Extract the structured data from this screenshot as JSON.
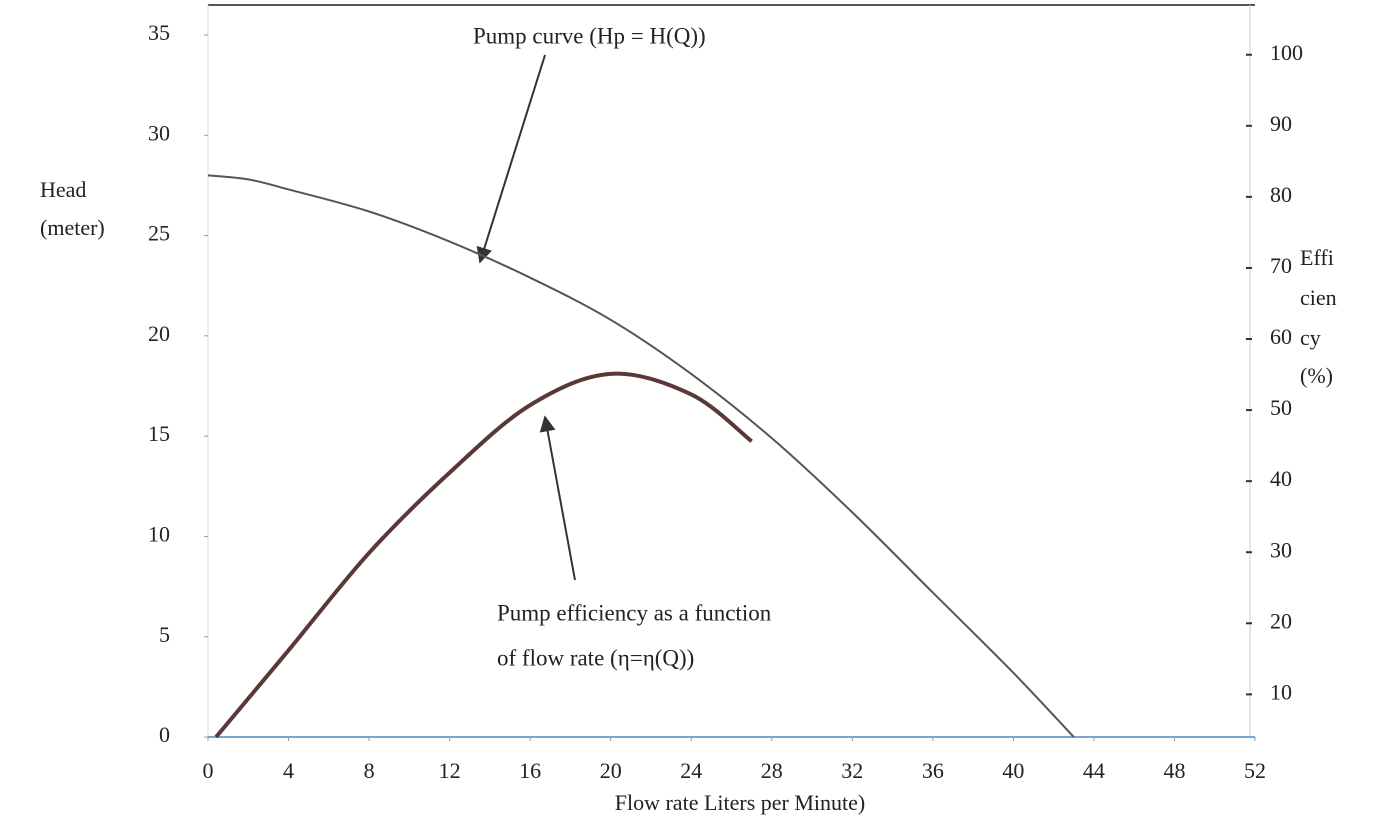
{
  "chart_data": {
    "type": "line",
    "annotations": [
      "Pump curve (Hp = H(Q))",
      "Pump efficiency as a function",
      "of flow rate (η=η(Q))"
    ],
    "xlabel": "Flow rate Liters per Minute)",
    "ylabel": [
      "Head",
      "(meter)"
    ],
    "y2label": [
      "Effi",
      "cien",
      "cy",
      "(%)"
    ],
    "xlim": [
      0,
      52
    ],
    "xticks": [
      0,
      4,
      8,
      12,
      16,
      20,
      24,
      28,
      32,
      36,
      40,
      44,
      48,
      52
    ],
    "ylim": [
      0,
      35
    ],
    "yticks": [
      0,
      5,
      10,
      15,
      20,
      25,
      30,
      35
    ],
    "y2lim": [
      4,
      107
    ],
    "y2ticks": [
      10,
      20,
      30,
      40,
      50,
      60,
      70,
      80,
      90,
      100
    ],
    "series": [
      {
        "color": "#555555",
        "x": [
          0,
          2,
          4,
          8,
          12,
          16,
          20,
          24,
          28,
          32,
          36,
          40,
          43
        ],
        "values": [
          28,
          27.8,
          27.3,
          26.2,
          24.7,
          22.9,
          20.8,
          18.1,
          14.9,
          11.2,
          7.2,
          3.2,
          0
        ]
      },
      {
        "color": "#5a3838",
        "axis": "y2",
        "x": [
          0.4,
          4,
          8,
          12,
          16,
          20,
          24,
          27
        ],
        "values": [
          4,
          16.2,
          29.9,
          41.2,
          50.7,
          55.1,
          52.2,
          45.6
        ]
      }
    ]
  }
}
